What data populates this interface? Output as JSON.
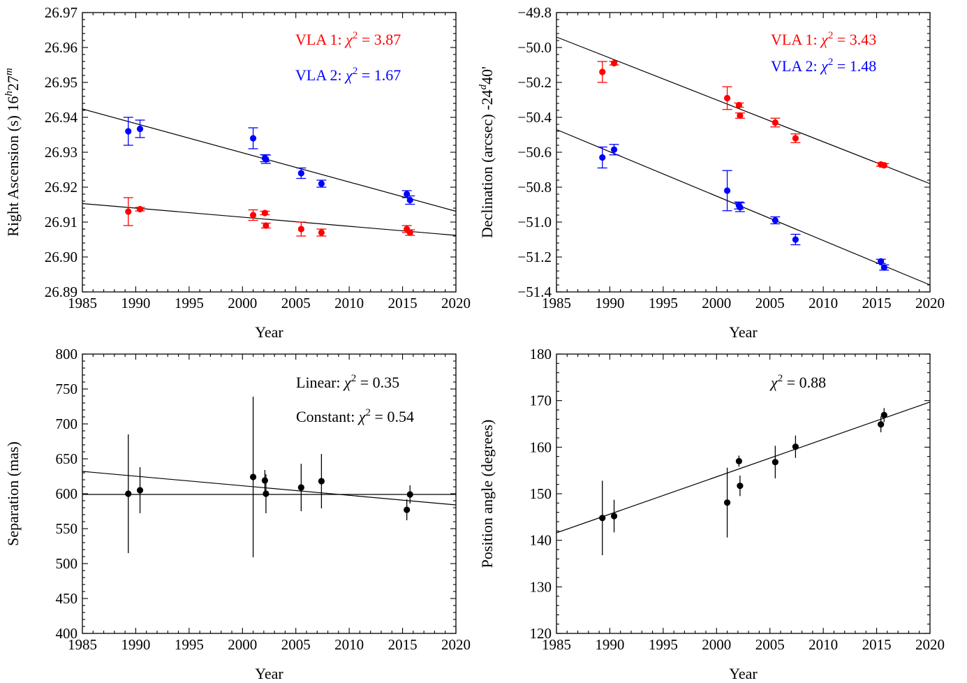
{
  "chart_data": [
    {
      "type": "scatter",
      "xlabel": "Year",
      "ylabel": "Right Ascension (s) 16^h27^m",
      "ylabel_parts": {
        "main": "Right Ascension (s) 16",
        "sup1": "h",
        "mid": "27",
        "sup2": "m"
      },
      "xlim": [
        1985,
        2020
      ],
      "ylim": [
        26.89,
        26.97
      ],
      "xticks": [
        "1985",
        "1990",
        "1995",
        "2000",
        "2005",
        "2010",
        "2015",
        "2020"
      ],
      "yticks": [
        "26.89",
        "26.90",
        "26.91",
        "26.92",
        "26.93",
        "26.94",
        "26.95",
        "26.96",
        "26.97"
      ],
      "grid": false,
      "annotations": [
        {
          "prefix": "VLA 1: ",
          "chi": "χ",
          "sup": "2",
          "suffix": " = 3.87",
          "color": "#ff0000"
        },
        {
          "prefix": "VLA 2: ",
          "chi": "χ",
          "sup": "2",
          "suffix": " = 1.67",
          "color": "#0000ff"
        }
      ],
      "series": [
        {
          "color": "#ff0000",
          "points": [
            {
              "x": 1989.3,
              "y": 26.913,
              "err": 0.004
            },
            {
              "x": 1990.4,
              "y": 26.9137,
              "err": 0.0005
            },
            {
              "x": 2001.0,
              "y": 26.912,
              "err": 0.0015
            },
            {
              "x": 2002.1,
              "y": 26.9126,
              "err": 0.0005
            },
            {
              "x": 2002.2,
              "y": 26.909,
              "err": 0.0007
            },
            {
              "x": 2005.5,
              "y": 26.908,
              "err": 0.002
            },
            {
              "x": 2007.4,
              "y": 26.907,
              "err": 0.001
            },
            {
              "x": 2015.4,
              "y": 26.908,
              "err": 0.001
            },
            {
              "x": 2015.7,
              "y": 26.907,
              "err": 0.0008
            }
          ],
          "fit": {
            "x": [
              1985,
              2020
            ],
            "y": [
              26.9153,
              26.9062
            ]
          }
        },
        {
          "color": "#0000ff",
          "points": [
            {
              "x": 1989.3,
              "y": 26.936,
              "err": 0.004
            },
            {
              "x": 1990.4,
              "y": 26.9367,
              "err": 0.0025
            },
            {
              "x": 2001.0,
              "y": 26.934,
              "err": 0.003
            },
            {
              "x": 2002.1,
              "y": 26.9283,
              "err": 0.001
            },
            {
              "x": 2002.2,
              "y": 26.928,
              "err": 0.0012
            },
            {
              "x": 2005.5,
              "y": 26.924,
              "err": 0.0015
            },
            {
              "x": 2007.4,
              "y": 26.921,
              "err": 0.001
            },
            {
              "x": 2015.4,
              "y": 26.918,
              "err": 0.001
            },
            {
              "x": 2015.7,
              "y": 26.9163,
              "err": 0.0012
            }
          ],
          "fit": {
            "x": [
              1985,
              2020
            ],
            "y": [
              26.9424,
              26.9131
            ]
          }
        }
      ]
    },
    {
      "type": "scatter",
      "xlabel": "Year",
      "ylabel": "Declination (arcsec) -24^d40'",
      "ylabel_parts": {
        "main": "Declination (arcsec) -24",
        "sup1": "d",
        "mid": "40'",
        "sup2": ""
      },
      "xlim": [
        1985,
        2020
      ],
      "ylim": [
        -51.4,
        -49.8
      ],
      "xticks": [
        "1985",
        "1990",
        "1995",
        "2000",
        "2005",
        "2010",
        "2015",
        "2020"
      ],
      "yticks": [
        "−51.4",
        "−51.2",
        "−51.0",
        "−50.8",
        "−50.6",
        "−50.4",
        "−50.2",
        "−50.0",
        "−49.8"
      ],
      "grid": false,
      "annotations": [
        {
          "prefix": "VLA 1: ",
          "chi": "χ",
          "sup": "2",
          "suffix": " = 3.43",
          "color": "#ff0000"
        },
        {
          "prefix": "VLA 2: ",
          "chi": "χ",
          "sup": "2",
          "suffix": " = 1.48",
          "color": "#0000ff"
        }
      ],
      "series": [
        {
          "color": "#ff0000",
          "points": [
            {
              "x": 1989.3,
              "y": -50.14,
              "err": 0.06
            },
            {
              "x": 1990.4,
              "y": -50.09,
              "err": 0.01
            },
            {
              "x": 2001.0,
              "y": -50.29,
              "err": 0.065
            },
            {
              "x": 2002.1,
              "y": -50.33,
              "err": 0.012
            },
            {
              "x": 2002.2,
              "y": -50.39,
              "err": 0.015
            },
            {
              "x": 2005.5,
              "y": -50.43,
              "err": 0.025
            },
            {
              "x": 2007.4,
              "y": -50.52,
              "err": 0.025
            },
            {
              "x": 2015.4,
              "y": -50.67,
              "err": 0.01
            },
            {
              "x": 2015.7,
              "y": -50.675,
              "err": 0.01
            }
          ],
          "fit": {
            "x": [
              1985,
              2020
            ],
            "y": [
              -49.94,
              -50.78
            ]
          }
        },
        {
          "color": "#0000ff",
          "points": [
            {
              "x": 1989.3,
              "y": -50.63,
              "err": 0.06
            },
            {
              "x": 1990.4,
              "y": -50.585,
              "err": 0.03
            },
            {
              "x": 2001.0,
              "y": -50.82,
              "err": 0.115
            },
            {
              "x": 2002.1,
              "y": -50.905,
              "err": 0.02
            },
            {
              "x": 2002.2,
              "y": -50.915,
              "err": 0.025
            },
            {
              "x": 2005.5,
              "y": -50.99,
              "err": 0.02
            },
            {
              "x": 2007.4,
              "y": -51.1,
              "err": 0.03
            },
            {
              "x": 2015.4,
              "y": -51.225,
              "err": 0.012
            },
            {
              "x": 2015.7,
              "y": -51.26,
              "err": 0.015
            }
          ],
          "fit": {
            "x": [
              1985,
              2020
            ],
            "y": [
              -50.47,
              -51.36
            ]
          }
        }
      ]
    },
    {
      "type": "scatter",
      "xlabel": "Year",
      "ylabel": "Separation (mas)",
      "ylabel_parts": {
        "main": "Separation (mas)",
        "sup1": "",
        "mid": "",
        "sup2": ""
      },
      "xlim": [
        1985,
        2020
      ],
      "ylim": [
        400,
        800
      ],
      "xticks": [
        "1985",
        "1990",
        "1995",
        "2000",
        "2005",
        "2010",
        "2015",
        "2020"
      ],
      "yticks": [
        "400",
        "450",
        "500",
        "550",
        "600",
        "650",
        "700",
        "750",
        "800"
      ],
      "grid": false,
      "annotations": [
        {
          "prefix": "Linear: ",
          "chi": "χ",
          "sup": "2",
          "suffix": " = 0.35",
          "color": "#000000"
        },
        {
          "prefix": "Constant: ",
          "chi": "χ",
          "sup": "2",
          "suffix": " = 0.54",
          "color": "#000000"
        }
      ],
      "series": [
        {
          "color": "#000000",
          "points": [
            {
              "x": 1989.3,
              "y": 600,
              "err": 85
            },
            {
              "x": 1990.4,
              "y": 605,
              "err": 33
            },
            {
              "x": 2001.0,
              "y": 624,
              "err": 115
            },
            {
              "x": 2002.1,
              "y": 619,
              "err": 15
            },
            {
              "x": 2002.2,
              "y": 600,
              "err": 28
            },
            {
              "x": 2005.5,
              "y": 609,
              "err": 34
            },
            {
              "x": 2007.4,
              "y": 618,
              "err": 39
            },
            {
              "x": 2015.4,
              "y": 577,
              "err": 15
            },
            {
              "x": 2015.7,
              "y": 599,
              "err": 13
            }
          ],
          "fit": {
            "x": [
              1985,
              2020
            ],
            "y": [
              632,
              584
            ]
          },
          "fit2": {
            "x": [
              1985,
              2020
            ],
            "y": [
              599,
              599
            ]
          }
        }
      ]
    },
    {
      "type": "scatter",
      "xlabel": "Year",
      "ylabel": "Position angle (degrees)",
      "ylabel_parts": {
        "main": "Position angle (degrees)",
        "sup1": "",
        "mid": "",
        "sup2": ""
      },
      "xlim": [
        1985,
        2020
      ],
      "ylim": [
        120,
        180
      ],
      "xticks": [
        "1985",
        "1990",
        "1995",
        "2000",
        "2005",
        "2010",
        "2015",
        "2020"
      ],
      "yticks": [
        "120",
        "130",
        "140",
        "150",
        "160",
        "170",
        "180"
      ],
      "grid": false,
      "annotations": [
        {
          "prefix": "",
          "chi": "χ",
          "sup": "2",
          "suffix": " = 0.88",
          "color": "#000000"
        }
      ],
      "series": [
        {
          "color": "#000000",
          "points": [
            {
              "x": 1989.3,
              "y": 144.8,
              "err": 8
            },
            {
              "x": 1990.4,
              "y": 145.2,
              "err": 3.5
            },
            {
              "x": 2001.0,
              "y": 148.1,
              "err": 7.5
            },
            {
              "x": 2002.1,
              "y": 157.0,
              "err": 1.2
            },
            {
              "x": 2002.2,
              "y": 151.7,
              "err": 2.2
            },
            {
              "x": 2005.5,
              "y": 156.8,
              "err": 3.5
            },
            {
              "x": 2007.4,
              "y": 160.1,
              "err": 2.4
            },
            {
              "x": 2015.4,
              "y": 164.9,
              "err": 1.7
            },
            {
              "x": 2015.7,
              "y": 166.9,
              "err": 1.5
            }
          ],
          "fit": {
            "x": [
              1985,
              2020
            ],
            "y": [
              141.6,
              169.7
            ]
          }
        }
      ]
    }
  ]
}
